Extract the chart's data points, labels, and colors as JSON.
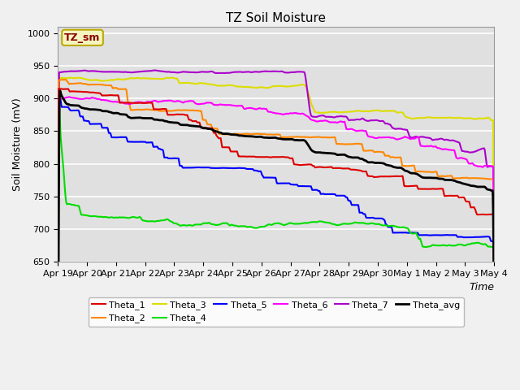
{
  "title": "TZ Soil Moisture",
  "ylabel": "Soil Moisture (mV)",
  "xlabel": "Time",
  "legend_label": "TZ_sm",
  "ylim": [
    650,
    1010
  ],
  "yticks": [
    650,
    700,
    750,
    800,
    850,
    900,
    950,
    1000
  ],
  "date_labels": [
    "Apr 19",
    "Apr 20",
    "Apr 21",
    "Apr 22",
    "Apr 23",
    "Apr 24",
    "Apr 25",
    "Apr 26",
    "Apr 27",
    "Apr 28",
    "Apr 29",
    "Apr 30",
    "May 1",
    "May 2",
    "May 3",
    "May 4"
  ],
  "series_colors": {
    "Theta_1": "#dd0000",
    "Theta_2": "#ff8800",
    "Theta_3": "#dddd00",
    "Theta_4": "#00dd00",
    "Theta_5": "#0000ff",
    "Theta_6": "#ff00ff",
    "Theta_7": "#aa00cc",
    "Theta_avg": "#000000"
  },
  "fig_facecolor": "#f0f0f0",
  "plot_facecolor": "#e0e0e0",
  "grid_color": "#ffffff",
  "title_fontsize": 11,
  "axis_fontsize": 9,
  "tick_fontsize": 8,
  "linewidth": 1.5,
  "avg_linewidth": 2.0
}
